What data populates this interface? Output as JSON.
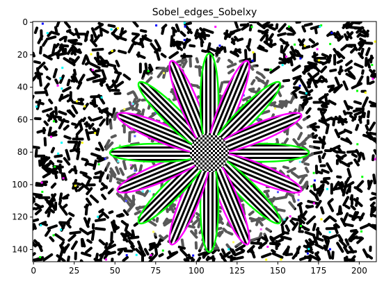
{
  "chart_data": {
    "type": "image",
    "title": "Sobel_edges_Sobelxy",
    "xlim": [
      -0.5,
      210.5
    ],
    "ylim": [
      147.5,
      -0.5
    ],
    "xticks": [
      0,
      25,
      50,
      75,
      100,
      125,
      150,
      175,
      200
    ],
    "yticks": [
      0,
      20,
      40,
      60,
      80,
      100,
      120,
      140
    ]
  }
}
